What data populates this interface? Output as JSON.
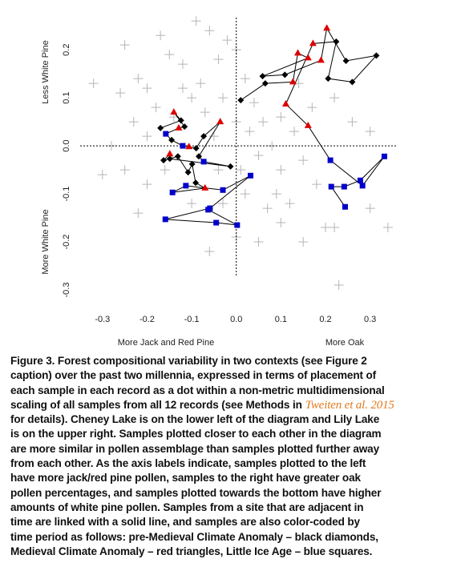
{
  "chart_data": {
    "type": "scatter",
    "xlim": [
      -0.35,
      0.36
    ],
    "ylim": [
      -0.33,
      0.267
    ],
    "xticks": [
      -0.3,
      -0.2,
      -0.1,
      {
        "value": 0,
        "label": "0.0"
      },
      0.1,
      0.2,
      0.3
    ],
    "yticks": [
      -0.3,
      -0.2,
      -0.1,
      {
        "value": 0,
        "label": "0.0"
      },
      0.1,
      0.2
    ],
    "zero_lines": true,
    "x_label_left": "More Jack and Red Pine",
    "x_label_right": "More Oak",
    "y_label_top": "Less White Pine",
    "y_label_bottom": "More White Pine",
    "background": {
      "color": "#b5b5b5",
      "marker": "plus",
      "x": [
        -0.32,
        -0.25,
        -0.17,
        -0.09,
        -0.06,
        -0.02,
        -0.15,
        -0.04,
        -0.12,
        -0.22,
        -0.26,
        -0.2,
        -0.18,
        -0.08,
        -0.03,
        0.02,
        0.0,
        -0.1,
        -0.07,
        0.04,
        0.06,
        0.1,
        -0.23,
        -0.14,
        -0.28,
        -0.2,
        -0.05,
        0.03,
        0.08,
        0.13,
        0.17,
        0.22,
        0.26,
        0.3,
        0.05,
        0.1,
        0.15,
        0.18,
        0.09,
        0.02,
        -0.03,
        -0.1,
        -0.2,
        -0.25,
        -0.3,
        -0.22,
        0.1,
        0.2,
        0.22,
        0.3,
        0.34,
        0.15,
        0.05,
        0.0,
        -0.06,
        0.23,
        0.12,
        0.07,
        -0.16,
        -0.04,
        0.0,
        -0.12,
        0.01,
        0.14
      ],
      "y": [
        0.13,
        0.21,
        0.23,
        0.26,
        0.24,
        0.22,
        0.19,
        0.18,
        0.17,
        0.14,
        0.11,
        0.12,
        0.08,
        0.13,
        0.1,
        0.14,
        0.2,
        0.1,
        0.07,
        0.09,
        0.05,
        0.06,
        0.05,
        0.06,
        0.0,
        0.02,
        0.02,
        0.03,
        0.0,
        0.03,
        0.08,
        0.1,
        0.05,
        0.03,
        -0.02,
        -0.05,
        -0.03,
        -0.08,
        -0.1,
        -0.1,
        -0.12,
        -0.12,
        -0.08,
        -0.05,
        -0.06,
        -0.14,
        -0.16,
        -0.17,
        -0.17,
        -0.13,
        -0.17,
        -0.2,
        -0.2,
        -0.19,
        -0.22,
        -0.29,
        -0.12,
        -0.13,
        -0.05,
        -0.05,
        0.05,
        0.12,
        -0.05,
        0.13
      ]
    },
    "line_color": "#000000",
    "marker_colors": {
      "diamond": "#000000",
      "triangle": "#dd0000",
      "square": "#0000cc"
    },
    "tracks": [
      {
        "x": [
          0.01,
          0.065,
          0.127,
          0.138,
          0.161,
          0.059,
          0.109,
          0.19,
          0.203,
          0.246,
          0.314,
          0.26,
          0.206,
          0.224,
          0.172,
          0.111,
          0.161,
          0.211,
          0.283,
          0.332,
          0.278,
          0.242,
          0.213,
          0.244
        ],
        "y": [
          0.095,
          0.13,
          0.133,
          0.193,
          0.183,
          0.145,
          0.148,
          0.178,
          0.245,
          0.177,
          0.188,
          0.133,
          0.14,
          0.217,
          0.213,
          0.087,
          0.042,
          -0.03,
          -0.083,
          -0.022,
          -0.072,
          -0.085,
          -0.085,
          -0.127
        ],
        "marker": [
          "diamond",
          "diamond",
          "triangle",
          "triangle",
          "triangle",
          "diamond",
          "diamond",
          "triangle",
          "triangle",
          "diamond",
          "diamond",
          "diamond",
          "diamond",
          "diamond",
          "triangle",
          "triangle",
          "triangle",
          "square",
          "square",
          "square",
          "square",
          "square",
          "square",
          "square"
        ]
      },
      {
        "x": [
          -0.17,
          -0.124,
          -0.14,
          -0.116,
          -0.129,
          -0.158,
          -0.145,
          -0.12,
          -0.106,
          -0.09,
          -0.073,
          -0.036,
          -0.084,
          -0.073,
          -0.013,
          -0.149,
          -0.149,
          -0.163,
          -0.131,
          -0.108,
          -0.099,
          -0.091,
          -0.07,
          -0.143,
          -0.113,
          -0.03,
          0.032,
          -0.059,
          -0.159,
          -0.045,
          0.002,
          -0.063
        ],
        "y": [
          0.037,
          0.053,
          0.07,
          0.04,
          0.037,
          0.025,
          0.012,
          0.0,
          -0.002,
          -0.005,
          0.02,
          0.05,
          -0.022,
          -0.033,
          -0.043,
          -0.027,
          -0.017,
          -0.03,
          -0.022,
          -0.055,
          -0.038,
          -0.077,
          -0.088,
          -0.097,
          -0.083,
          -0.092,
          -0.062,
          -0.13,
          -0.153,
          -0.16,
          -0.165,
          -0.133
        ],
        "marker": [
          "diamond",
          "diamond",
          "triangle",
          "diamond",
          "triangle",
          "square",
          "diamond",
          "square",
          "triangle",
          "diamond",
          "diamond",
          "triangle",
          "diamond",
          "square",
          "diamond",
          "diamond",
          "triangle",
          "diamond",
          "diamond",
          "diamond",
          "diamond",
          "diamond",
          "triangle",
          "square",
          "square",
          "square",
          "square",
          "square",
          "square",
          "square",
          "square",
          "square"
        ]
      }
    ]
  },
  "caption": {
    "lines": [
      "Figure 3. Forest compositional variability in two contexts (see Figure 2",
      "caption) over the past two millennia, expressed in terms of placement of",
      "each sample in each record as a dot within a non-metric multidimensional",
      "scaling of all samples from all 12 records (see Methods in",
      "for details). Cheney Lake is on the lower left of the diagram and Lily Lake",
      "is on the upper right. Samples plotted closer to each other in the diagram",
      "are more similar in pollen assemblage than samples plotted further away",
      "from each other. As the axis labels indicate, samples plotted to the left",
      "have more jack/red pine pollen, samples to the right have greater oak",
      "pollen percentages, and samples plotted towards the bottom have higher",
      "amounts of white pine pollen. Samples from a site that are adjacent in",
      "time are linked with a solid line, and samples are also color-coded by",
      "time period as follows: pre-Medieval Climate Anomaly – black diamonds,",
      "Medieval Climate Anomaly – red triangles, Little Ice Age – blue squares."
    ],
    "link": "Tweiten et al. 2015",
    "link_color": "#e07a1f",
    "link_after_line": 3
  }
}
